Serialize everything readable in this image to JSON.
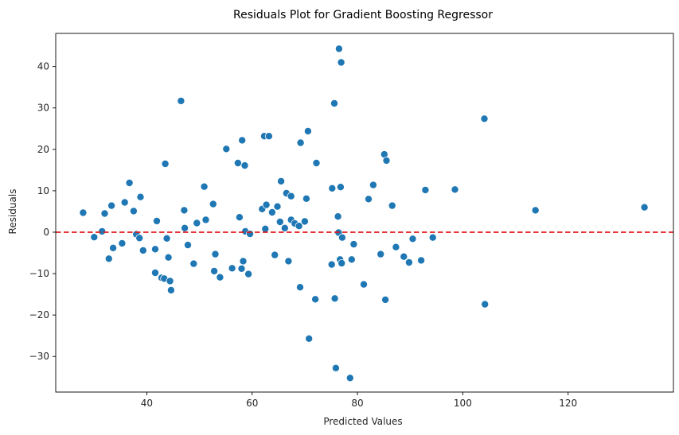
{
  "chart_data": {
    "type": "scatter",
    "title": "Residuals Plot for Gradient Boosting Regressor",
    "xlabel": "Predicted Values",
    "ylabel": "Residuals",
    "xlim": [
      22.7,
      140.0
    ],
    "ylim": [
      -38.6,
      48.0
    ],
    "xticks": [
      40,
      60,
      80,
      100,
      120
    ],
    "yticks": [
      -30,
      -20,
      -10,
      0,
      10,
      20,
      30,
      40
    ],
    "reference_line": {
      "y": 0,
      "style": "dashed",
      "color": "#e41a1c"
    },
    "colors": {
      "points": "#1f77b4",
      "point_edge": "#ffffff",
      "reference": "#e41a1c",
      "axes": "#000000",
      "text": "#262626"
    },
    "grid": false,
    "points": [
      {
        "x": 27.9,
        "y": 4.7
      },
      {
        "x": 30.0,
        "y": -1.2
      },
      {
        "x": 31.5,
        "y": 0.2
      },
      {
        "x": 32.0,
        "y": 4.5
      },
      {
        "x": 32.8,
        "y": -6.4
      },
      {
        "x": 33.3,
        "y": 6.4
      },
      {
        "x": 33.6,
        "y": -3.8
      },
      {
        "x": 35.3,
        "y": -2.7
      },
      {
        "x": 35.8,
        "y": 7.2
      },
      {
        "x": 36.7,
        "y": 11.9
      },
      {
        "x": 37.5,
        "y": 5.1
      },
      {
        "x": 38.0,
        "y": -0.5
      },
      {
        "x": 38.6,
        "y": -1.4
      },
      {
        "x": 38.8,
        "y": 8.5
      },
      {
        "x": 39.3,
        "y": -4.4
      },
      {
        "x": 41.6,
        "y": -4.1
      },
      {
        "x": 41.6,
        "y": -9.8
      },
      {
        "x": 41.9,
        "y": 2.7
      },
      {
        "x": 42.8,
        "y": -11.0
      },
      {
        "x": 43.3,
        "y": -11.2
      },
      {
        "x": 43.5,
        "y": 16.5
      },
      {
        "x": 43.8,
        "y": -1.5
      },
      {
        "x": 44.1,
        "y": -6.1
      },
      {
        "x": 44.4,
        "y": -11.8
      },
      {
        "x": 44.6,
        "y": -14.0
      },
      {
        "x": 46.5,
        "y": 31.7
      },
      {
        "x": 47.1,
        "y": 5.3
      },
      {
        "x": 47.2,
        "y": 1.0
      },
      {
        "x": 47.8,
        "y": -3.1
      },
      {
        "x": 48.9,
        "y": -7.6
      },
      {
        "x": 49.5,
        "y": 2.2
      },
      {
        "x": 50.9,
        "y": 11.0
      },
      {
        "x": 51.2,
        "y": 3.0
      },
      {
        "x": 52.6,
        "y": 6.8
      },
      {
        "x": 52.8,
        "y": -9.4
      },
      {
        "x": 53.0,
        "y": -5.3
      },
      {
        "x": 53.9,
        "y": -10.9
      },
      {
        "x": 55.1,
        "y": 20.1
      },
      {
        "x": 56.2,
        "y": -8.7
      },
      {
        "x": 57.3,
        "y": 16.7
      },
      {
        "x": 57.6,
        "y": 3.6
      },
      {
        "x": 58.0,
        "y": -8.8
      },
      {
        "x": 58.1,
        "y": 22.2
      },
      {
        "x": 58.3,
        "y": -7.0
      },
      {
        "x": 58.6,
        "y": 16.1
      },
      {
        "x": 58.7,
        "y": 0.2
      },
      {
        "x": 59.3,
        "y": -10.1
      },
      {
        "x": 59.6,
        "y": -0.4
      },
      {
        "x": 61.9,
        "y": 5.6
      },
      {
        "x": 62.3,
        "y": 23.2
      },
      {
        "x": 62.5,
        "y": 0.8
      },
      {
        "x": 62.7,
        "y": 6.6
      },
      {
        "x": 63.2,
        "y": 23.2
      },
      {
        "x": 63.8,
        "y": 4.8
      },
      {
        "x": 64.3,
        "y": -5.5
      },
      {
        "x": 64.8,
        "y": 6.2
      },
      {
        "x": 65.3,
        "y": 2.5
      },
      {
        "x": 65.5,
        "y": 12.3
      },
      {
        "x": 66.2,
        "y": 1.0
      },
      {
        "x": 66.5,
        "y": 9.4
      },
      {
        "x": 66.9,
        "y": -7.0
      },
      {
        "x": 67.4,
        "y": 8.7
      },
      {
        "x": 67.4,
        "y": 3.0
      },
      {
        "x": 68.1,
        "y": 2.1
      },
      {
        "x": 68.9,
        "y": 1.5
      },
      {
        "x": 69.1,
        "y": -13.3
      },
      {
        "x": 69.2,
        "y": 21.6
      },
      {
        "x": 70.0,
        "y": 2.6
      },
      {
        "x": 70.3,
        "y": 8.1
      },
      {
        "x": 70.6,
        "y": 24.4
      },
      {
        "x": 70.8,
        "y": -25.7
      },
      {
        "x": 72.0,
        "y": -16.2
      },
      {
        "x": 72.2,
        "y": 16.7
      },
      {
        "x": 75.1,
        "y": -7.8
      },
      {
        "x": 75.2,
        "y": 10.6
      },
      {
        "x": 75.6,
        "y": 31.1
      },
      {
        "x": 75.7,
        "y": -16.0
      },
      {
        "x": 75.9,
        "y": -32.8
      },
      {
        "x": 76.3,
        "y": 3.8
      },
      {
        "x": 76.4,
        "y": -0.1
      },
      {
        "x": 76.5,
        "y": 44.3
      },
      {
        "x": 76.7,
        "y": -6.6
      },
      {
        "x": 76.8,
        "y": 10.9
      },
      {
        "x": 76.9,
        "y": 41.0
      },
      {
        "x": 77.0,
        "y": -7.5
      },
      {
        "x": 77.1,
        "y": -1.3
      },
      {
        "x": 78.6,
        "y": -35.2
      },
      {
        "x": 78.9,
        "y": -6.6
      },
      {
        "x": 79.3,
        "y": -2.9
      },
      {
        "x": 81.2,
        "y": -12.6
      },
      {
        "x": 82.1,
        "y": 8.0
      },
      {
        "x": 83.0,
        "y": 11.4
      },
      {
        "x": 84.4,
        "y": -5.3
      },
      {
        "x": 85.1,
        "y": 18.8
      },
      {
        "x": 85.3,
        "y": -16.3
      },
      {
        "x": 85.5,
        "y": 17.3
      },
      {
        "x": 86.6,
        "y": 6.4
      },
      {
        "x": 87.3,
        "y": -3.6
      },
      {
        "x": 88.8,
        "y": -5.9
      },
      {
        "x": 89.8,
        "y": -7.3
      },
      {
        "x": 90.5,
        "y": -1.6
      },
      {
        "x": 92.1,
        "y": -6.8
      },
      {
        "x": 92.9,
        "y": 10.2
      },
      {
        "x": 94.3,
        "y": -1.3
      },
      {
        "x": 98.5,
        "y": 10.3
      },
      {
        "x": 104.1,
        "y": 27.4
      },
      {
        "x": 104.2,
        "y": -17.4
      },
      {
        "x": 113.8,
        "y": 5.3
      },
      {
        "x": 134.5,
        "y": 6.0
      }
    ]
  }
}
